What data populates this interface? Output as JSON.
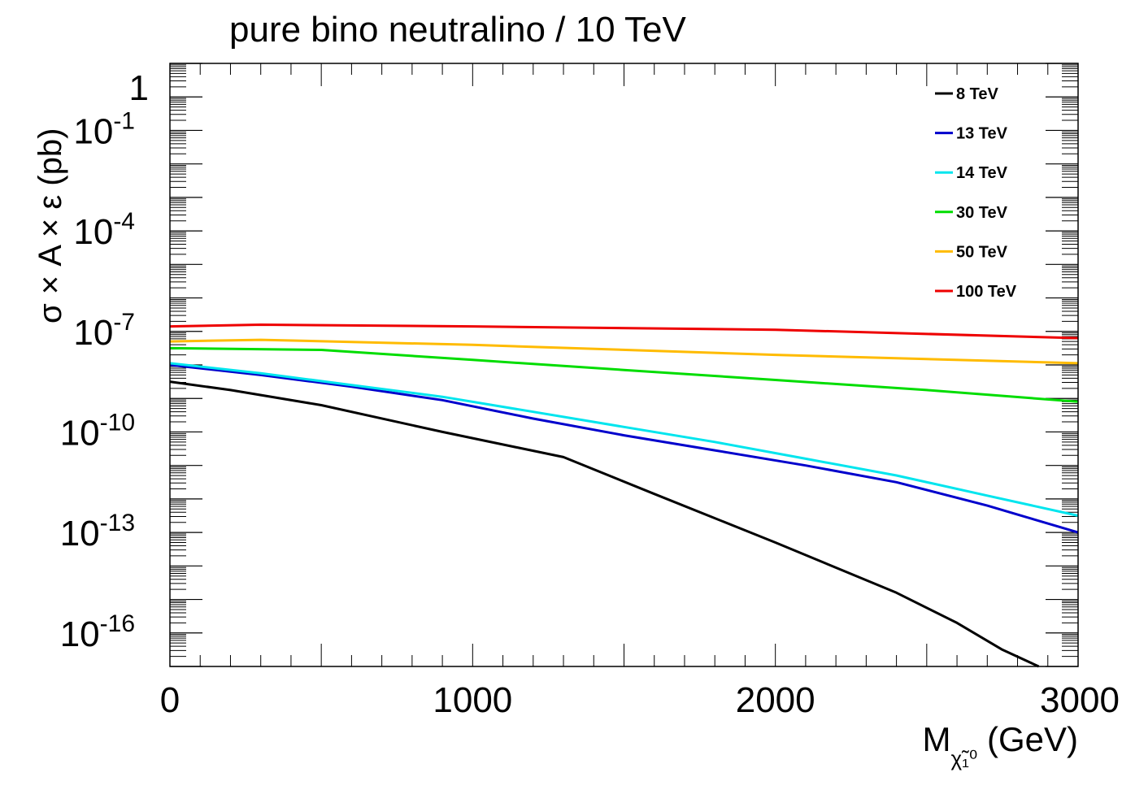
{
  "chart_data": {
    "type": "line",
    "title": "pure bino neutralino / 10 TeV",
    "xlabel_main": "M",
    "xlabel_sub": "χ̃₁⁰",
    "xlabel_unit": "(GeV)",
    "ylabel": "σ × A × ε (pb)",
    "xlim": [
      0,
      3000
    ],
    "ylim_log10": [
      -17,
      1
    ],
    "yscale": "log",
    "x_ticks": [
      "0",
      "1000",
      "2000",
      "3000"
    ],
    "y_ticks": [
      {
        "exp": 0,
        "label": "1"
      },
      {
        "exp": -1,
        "label": "10",
        "sup": "-1"
      },
      {
        "exp": -4,
        "label": "10",
        "sup": "-4"
      },
      {
        "exp": -7,
        "label": "10",
        "sup": "-7"
      },
      {
        "exp": -10,
        "label": "10",
        "sup": "-10"
      },
      {
        "exp": -13,
        "label": "10",
        "sup": "-13"
      },
      {
        "exp": -16,
        "label": "10",
        "sup": "-16"
      }
    ],
    "legend_position": "top-right",
    "series": [
      {
        "name": "8 TeV",
        "color": "#000000",
        "x": [
          0,
          200,
          500,
          900,
          1300,
          1600,
          2000,
          2400,
          2600,
          2750,
          2870
        ],
        "log10y": [
          -8.5,
          -8.75,
          -9.2,
          -10.0,
          -10.75,
          -11.85,
          -13.3,
          -14.8,
          -15.7,
          -16.5,
          -17.0
        ]
      },
      {
        "name": "13 TeV",
        "color": "#0000cc",
        "x": [
          0,
          300,
          600,
          900,
          1200,
          1500,
          1800,
          2100,
          2400,
          2700,
          3000
        ],
        "log10y": [
          -8.0,
          -8.3,
          -8.65,
          -9.05,
          -9.6,
          -10.1,
          -10.55,
          -11.0,
          -11.5,
          -12.2,
          -13.0
        ]
      },
      {
        "name": "14 TeV",
        "color": "#00e5ee",
        "x": [
          0,
          300,
          600,
          900,
          1200,
          1500,
          1800,
          2100,
          2400,
          2700,
          3000
        ],
        "log10y": [
          -7.95,
          -8.25,
          -8.6,
          -8.95,
          -9.4,
          -9.85,
          -10.3,
          -10.8,
          -11.3,
          -11.9,
          -12.5
        ]
      },
      {
        "name": "30 TeV",
        "color": "#00dd00",
        "x": [
          0,
          500,
          1000,
          1500,
          2000,
          2500,
          3000
        ],
        "log10y": [
          -7.5,
          -7.55,
          -7.85,
          -8.15,
          -8.45,
          -8.75,
          -9.1
        ]
      },
      {
        "name": "50 TeV",
        "color": "#ffbb00",
        "x": [
          0,
          300,
          1000,
          2000,
          3000
        ],
        "log10y": [
          -7.3,
          -7.25,
          -7.4,
          -7.7,
          -7.95
        ]
      },
      {
        "name": "100 TeV",
        "color": "#ee0000",
        "x": [
          0,
          300,
          1000,
          2000,
          3000
        ],
        "log10y": [
          -6.85,
          -6.8,
          -6.85,
          -6.95,
          -7.2
        ]
      }
    ]
  }
}
